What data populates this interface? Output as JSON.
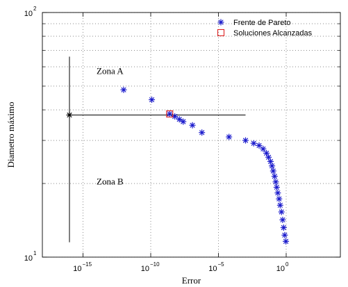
{
  "chart_data": {
    "type": "scatter",
    "xlabel": "Error",
    "ylabel": "Diametro máximo",
    "x_scale": "log",
    "y_scale": "log",
    "xlim": [
      1e-18,
      10000.0
    ],
    "ylim": [
      10,
      100
    ],
    "grid": true,
    "legend_position": "top-right",
    "x_ticks": [
      {
        "value": 1e-15,
        "base": "10",
        "exp": "−15"
      },
      {
        "value": 1e-10,
        "base": "10",
        "exp": "−10"
      },
      {
        "value": 1e-05,
        "base": "10",
        "exp": "−5"
      },
      {
        "value": 1,
        "base": "10",
        "exp": "0"
      }
    ],
    "y_ticks": [
      {
        "value": 10,
        "base": "10",
        "exp": "1"
      },
      {
        "value": 100,
        "base": "10",
        "exp": "2"
      }
    ],
    "series": [
      {
        "name": "Frente de Pareto",
        "marker": "asterisk",
        "color": "#1a1acc",
        "points": [
          [
            1e-12,
            48.3
          ],
          [
            1.2e-10,
            44.0
          ],
          [
            2.5e-09,
            38.5
          ],
          [
            6e-09,
            37.6
          ],
          [
            1.3e-08,
            36.6
          ],
          [
            2.5e-08,
            35.8
          ],
          [
            1.2e-07,
            34.6
          ],
          [
            6e-07,
            32.3
          ],
          [
            6e-05,
            31.0
          ],
          [
            0.001,
            30.0
          ],
          [
            0.004,
            29.2
          ],
          [
            0.01,
            28.6
          ],
          [
            0.02,
            27.7
          ],
          [
            0.035,
            26.6
          ],
          [
            0.05,
            25.6
          ],
          [
            0.07,
            24.6
          ],
          [
            0.09,
            23.6
          ],
          [
            0.11,
            22.5
          ],
          [
            0.14,
            21.4
          ],
          [
            0.17,
            20.3
          ],
          [
            0.2,
            19.3
          ],
          [
            0.24,
            18.3
          ],
          [
            0.3,
            17.3
          ],
          [
            0.36,
            16.3
          ],
          [
            0.45,
            15.3
          ],
          [
            0.55,
            14.2
          ],
          [
            0.65,
            13.2
          ],
          [
            0.78,
            12.3
          ],
          [
            0.95,
            11.6
          ]
        ]
      },
      {
        "name": "Soluciones Alcanzadas",
        "marker": "square",
        "color": "#dd2222",
        "points": [
          [
            2.5e-09,
            38.5
          ]
        ]
      }
    ],
    "reference_lines": {
      "horizontal": {
        "y": 38.1,
        "x_from": 1e-16,
        "x_to": 0.001
      },
      "vertical": {
        "x": 1e-16,
        "y_from": 11.5,
        "y_to": 66
      }
    },
    "reference_point": [
      1e-16,
      38.1
    ],
    "annotations": [
      {
        "text": "Zona A",
        "x": 1e-14,
        "y": 56
      },
      {
        "text": "Zona B",
        "x": 1e-14,
        "y": 19.8
      }
    ]
  }
}
